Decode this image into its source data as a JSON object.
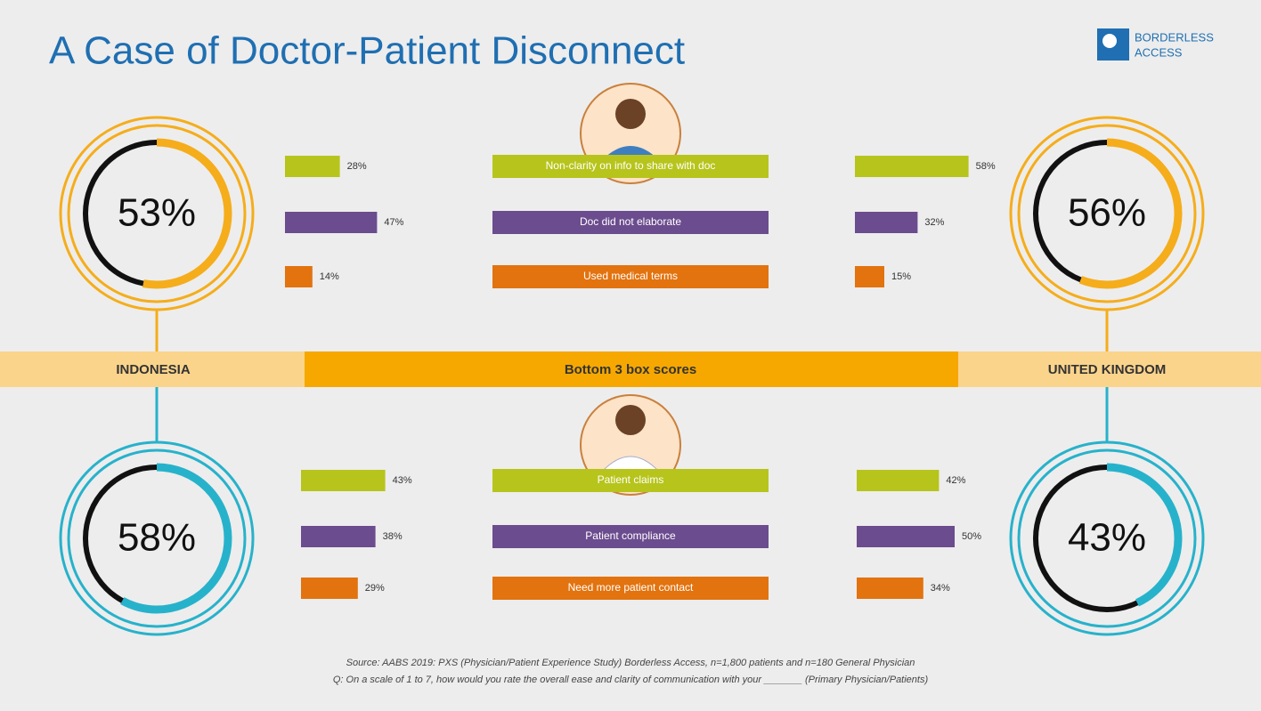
{
  "title": "A Case of Doctor-Patient Disconnect",
  "logo": {
    "line1": "BORDERLESS",
    "line2": "ACCESS"
  },
  "band": {
    "left": "INDONESIA",
    "center": "Bottom 3 box scores",
    "right": "UNITED KINGDOM"
  },
  "sections": [
    {
      "color": "#f5ad1b",
      "donuts": {
        "values": [
          53,
          56
        ],
        "value_labels": [
          "53%",
          "56%"
        ]
      },
      "items": [
        {
          "label": "Non-clarity on info to share with doc",
          "color": "#b7c41c",
          "values": [
            28,
            58
          ],
          "value_labels": [
            "28%",
            "58%"
          ]
        },
        {
          "label": "Doc did not elaborate",
          "color": "#6b4c8e",
          "values": [
            47,
            32
          ],
          "value_labels": [
            "47%",
            "32%"
          ]
        },
        {
          "label": "Used medical terms",
          "color": "#e2730f",
          "values": [
            14,
            15
          ],
          "value_labels": [
            "14%",
            "15%"
          ]
        }
      ]
    },
    {
      "color": "#27b2cb",
      "donuts": {
        "values": [
          58,
          43
        ],
        "value_labels": [
          "58%",
          "43%"
        ]
      },
      "items": [
        {
          "label": "Patient claims",
          "color": "#b7c41c",
          "values": [
            43,
            42
          ],
          "value_labels": [
            "43%",
            "42%"
          ]
        },
        {
          "label": "Patient compliance",
          "color": "#6b4c8e",
          "values": [
            38,
            50
          ],
          "value_labels": [
            "38%",
            "50%"
          ]
        },
        {
          "label": "Need more patient contact",
          "color": "#e2730f",
          "values": [
            29,
            34
          ],
          "value_labels": [
            "29%",
            "34%"
          ]
        }
      ]
    }
  ],
  "footnotes": [
    "Source: AABS 2019: PXS (Physician/Patient Experience Study) Borderless Access, n=1,800 patients and n=180 General Physician",
    "Q: On a scale of 1 to 7, how would you rate the overall ease and clarity of communication with your _______ (Primary Physician/Patients)"
  ]
}
